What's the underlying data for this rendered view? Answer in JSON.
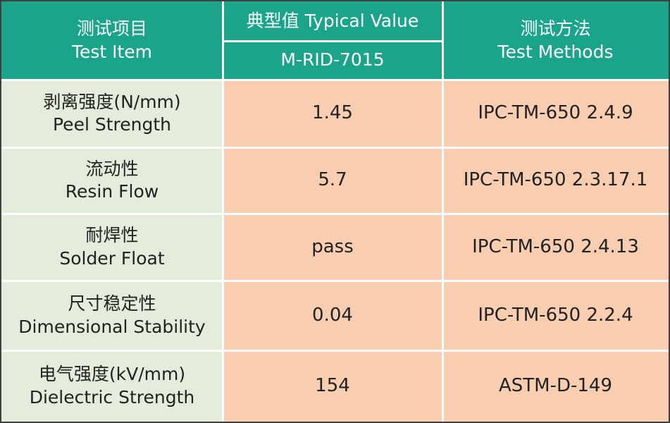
{
  "header": {
    "item_cn": "测试项目",
    "item_en": "Test Item",
    "value_label": "典型值 Typical Value",
    "model": "M-RID-7015",
    "method_cn": "测试方法",
    "method_en": "Test Methods"
  },
  "rows": [
    {
      "cn": "剥离强度(N/mm)",
      "en": "Peel Strength",
      "value": "1.45",
      "method": "IPC-TM-650 2.4.9"
    },
    {
      "cn": "流动性",
      "en": "Resin Flow",
      "value": "5.7",
      "method": "IPC-TM-650 2.3.17.1"
    },
    {
      "cn": "耐焊性",
      "en": "Solder Float",
      "value": "pass",
      "method": "IPC-TM-650 2.4.13"
    },
    {
      "cn": "尺寸稳定性",
      "en": "Dimensional Stability",
      "value": "0.04",
      "method": "IPC-TM-650 2.2.4"
    },
    {
      "cn": "电气强度(kV/mm)",
      "en": "Dielectric Strength",
      "value": "154",
      "method": "ASTM-D-149"
    }
  ],
  "colors": {
    "header_bg": "#1aa58a",
    "label_bg": "#e4ecdb",
    "value_bg": "#f8cdb0",
    "border": "#3f3f3f"
  }
}
